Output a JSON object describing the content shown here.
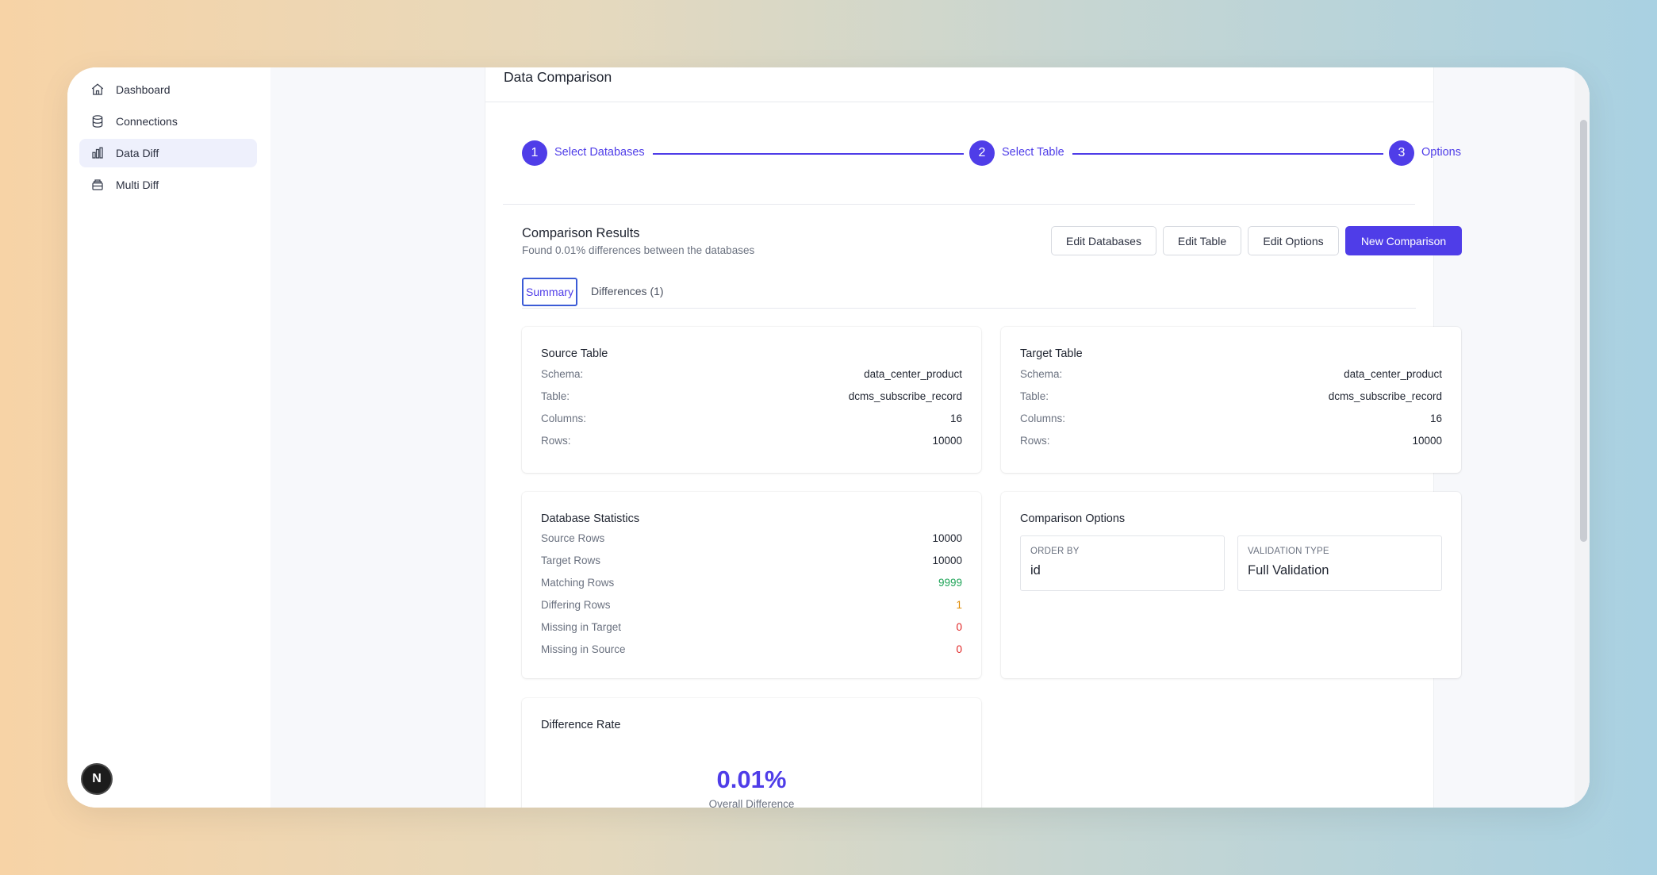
{
  "sidebar": {
    "items": [
      {
        "label": "Dashboard",
        "icon": "home-icon"
      },
      {
        "label": "Connections",
        "icon": "database-icon"
      },
      {
        "label": "Data Diff",
        "icon": "bar-chart-icon",
        "active": true
      },
      {
        "label": "Multi Diff",
        "icon": "layers-icon"
      }
    ],
    "badge": "N"
  },
  "page": {
    "title": "Data Comparison"
  },
  "stepper": {
    "steps": [
      {
        "number": "1",
        "label": "Select Databases"
      },
      {
        "number": "2",
        "label": "Select Table"
      },
      {
        "number": "3",
        "label": "Options"
      }
    ]
  },
  "results": {
    "title": "Comparison Results",
    "subtitle": "Found 0.01% differences between the databases",
    "buttons": {
      "edit_databases": "Edit Databases",
      "edit_table": "Edit Table",
      "edit_options": "Edit Options",
      "new_comparison": "New Comparison"
    }
  },
  "tabs": {
    "summary": "Summary",
    "differences": "Differences (1)"
  },
  "source_table": {
    "title": "Source Table",
    "rows": [
      {
        "key": "Schema:",
        "value": "data_center_product"
      },
      {
        "key": "Table:",
        "value": "dcms_subscribe_record"
      },
      {
        "key": "Columns:",
        "value": "16"
      },
      {
        "key": "Rows:",
        "value": "10000"
      }
    ]
  },
  "target_table": {
    "title": "Target Table",
    "rows": [
      {
        "key": "Schema:",
        "value": "data_center_product"
      },
      {
        "key": "Table:",
        "value": "dcms_subscribe_record"
      },
      {
        "key": "Columns:",
        "value": "16"
      },
      {
        "key": "Rows:",
        "value": "10000"
      }
    ]
  },
  "db_stats": {
    "title": "Database Statistics",
    "rows": [
      {
        "key": "Source Rows",
        "value": "10000"
      },
      {
        "key": "Target Rows",
        "value": "10000"
      },
      {
        "key": "Matching Rows",
        "value": "9999"
      },
      {
        "key": "Differing Rows",
        "value": "1"
      },
      {
        "key": "Missing in Target",
        "value": "0"
      },
      {
        "key": "Missing in Source",
        "value": "0"
      }
    ],
    "colors": {
      "matching": "#22a55a",
      "differing": "#e08a00",
      "missing": "#e02424"
    }
  },
  "comparison_options": {
    "title": "Comparison Options",
    "order_by_label": "ORDER BY",
    "order_by_value": "id",
    "validation_label": "VALIDATION TYPE",
    "validation_value": "Full Validation"
  },
  "difference_rate": {
    "title": "Difference Rate",
    "value": "0.01%",
    "caption": "Overall Difference"
  },
  "colors": {
    "accent": "#4f3de8"
  }
}
